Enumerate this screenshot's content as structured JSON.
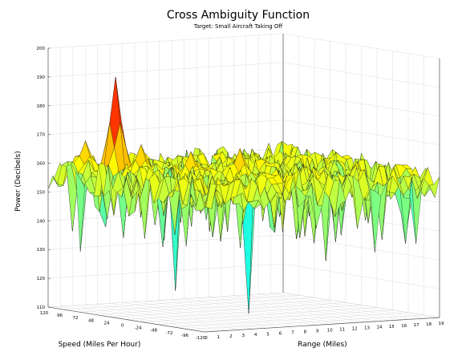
{
  "chart_data": {
    "type": "surface",
    "title": "Cross Ambiguity Function",
    "subtitle": "Target: Small Aircraft Taking Off",
    "xlabel": "Speed (Miles Per Hour)",
    "ylabel": "Range (Miles)",
    "zlabel": "Power (Decibels)",
    "zlim": [
      110,
      200
    ],
    "xlim": [
      -120,
      120
    ],
    "ylim": [
      0,
      19
    ],
    "z_ticks": [
      "110",
      "120",
      "130",
      "140",
      "150",
      "160",
      "170",
      "180",
      "190",
      "200"
    ],
    "speed_ticks": [
      "120",
      "96",
      "72",
      "48",
      "24",
      "0",
      "-24",
      "-48",
      "-72",
      "-96",
      "-120"
    ],
    "range_ticks": [
      "0",
      "1",
      "2",
      "3",
      "4",
      "5",
      "6",
      "7",
      "8",
      "9",
      "10",
      "11",
      "12",
      "13",
      "14",
      "15",
      "16",
      "17",
      "18",
      "19"
    ],
    "colormap": [
      "#00007f",
      "#0000ff",
      "#00ffff",
      "#7fff7f",
      "#ffff00",
      "#ff7f00",
      "#ff0000",
      "#7f0000"
    ],
    "baseline_db": 157,
    "peaks": [
      {
        "speed_mph": 72,
        "range_miles": 3,
        "power_db": 191
      },
      {
        "speed_mph": 96,
        "range_miles": 2,
        "power_db": 168
      },
      {
        "speed_mph": 48,
        "range_miles": 4,
        "power_db": 168
      },
      {
        "speed_mph": 0,
        "range_miles": 5,
        "power_db": 167
      },
      {
        "speed_mph": -24,
        "range_miles": 8,
        "power_db": 168
      }
    ],
    "minima": [
      {
        "speed_mph": 72,
        "range_miles": 0,
        "power_db": 131
      },
      {
        "speed_mph": -24,
        "range_miles": 3,
        "power_db": 120
      },
      {
        "speed_mph": -72,
        "range_miles": 6,
        "power_db": 113
      },
      {
        "speed_mph": -96,
        "range_miles": 11,
        "power_db": 131
      },
      {
        "speed_mph": -120,
        "range_miles": 14,
        "power_db": 134
      }
    ],
    "grid": true
  }
}
